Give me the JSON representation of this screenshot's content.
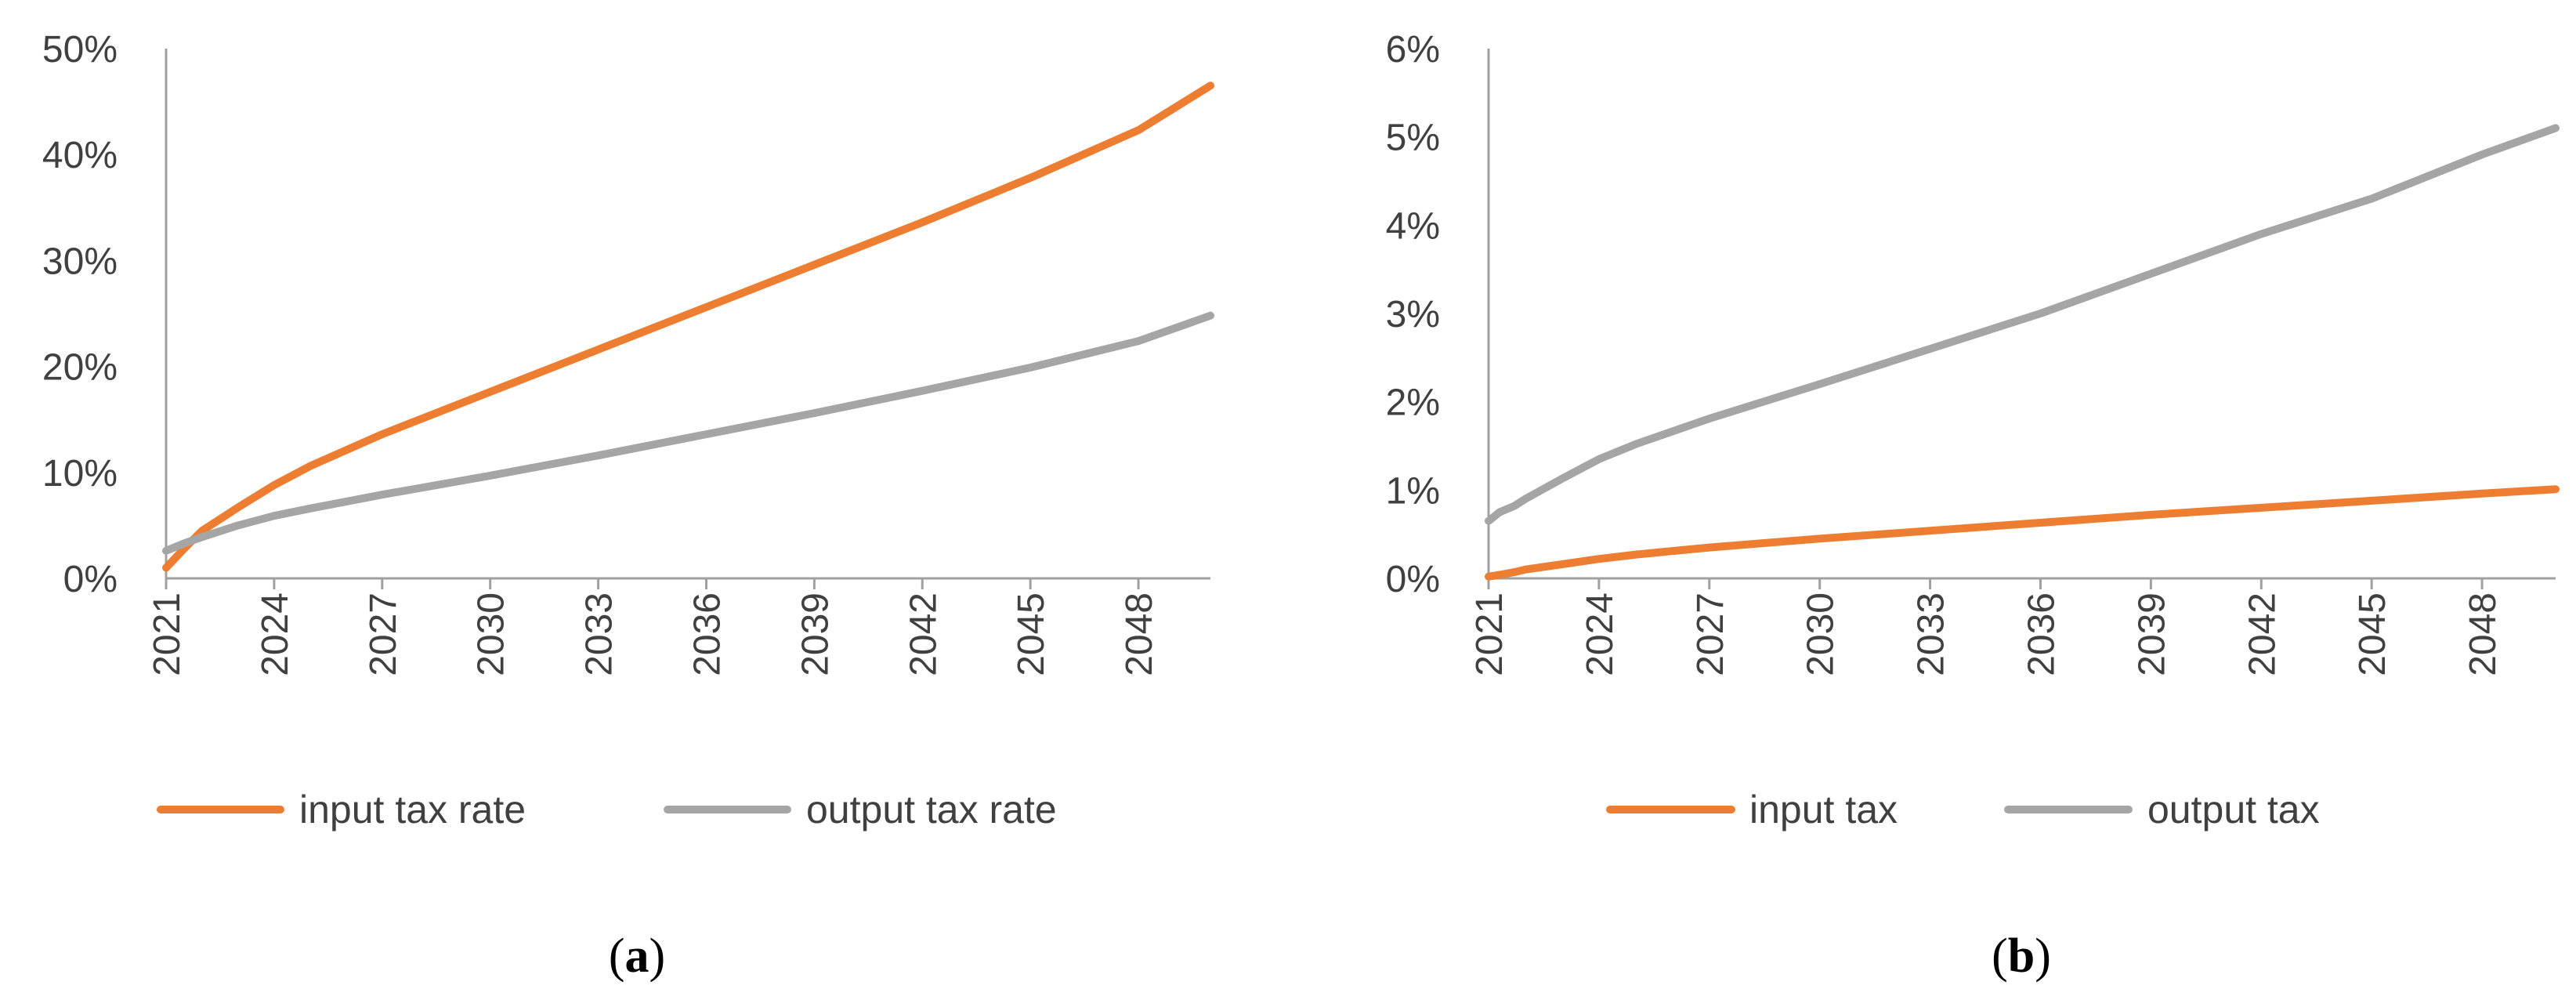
{
  "chart_data": [
    {
      "type": "line",
      "panel_label": "a",
      "caption_open": "(",
      "caption_close": ")",
      "title": "",
      "xlabel": "",
      "ylabel": "",
      "ylim": [
        0,
        50
      ],
      "yticks": [
        0,
        10,
        20,
        30,
        40,
        50
      ],
      "ytick_labels": [
        "0%",
        "10%",
        "20%",
        "30%",
        "40%",
        "50%"
      ],
      "xlim": [
        2021,
        2050
      ],
      "xticks": [
        2021,
        2024,
        2027,
        2030,
        2033,
        2036,
        2039,
        2042,
        2045,
        2048
      ],
      "xtick_labels": [
        "2021",
        "2024",
        "2027",
        "2030",
        "2033",
        "2036",
        "2039",
        "2042",
        "2045",
        "2048"
      ],
      "grid": false,
      "legend_position": "bottom",
      "x": [
        2021,
        2021.5,
        2022,
        2023,
        2024,
        2025,
        2027,
        2030,
        2033,
        2036,
        2039,
        2042,
        2045,
        2048,
        2050
      ],
      "series": [
        {
          "name": "input tax rate",
          "color": "#ED7D31",
          "values": [
            1.0,
            2.8,
            4.5,
            6.7,
            8.8,
            10.6,
            13.6,
            17.6,
            21.6,
            25.6,
            29.6,
            33.6,
            37.8,
            42.3,
            46.5
          ]
        },
        {
          "name": "output tax rate",
          "color": "#A5A5A5",
          "values": [
            2.6,
            3.3,
            3.9,
            5.0,
            5.9,
            6.6,
            7.9,
            9.7,
            11.6,
            13.6,
            15.6,
            17.7,
            19.9,
            22.4,
            24.8
          ]
        }
      ]
    },
    {
      "type": "line",
      "panel_label": "b",
      "caption_open": "(",
      "caption_close": ")",
      "title": "",
      "xlabel": "",
      "ylabel": "",
      "ylim": [
        0,
        6
      ],
      "yticks": [
        0,
        1,
        2,
        3,
        4,
        5,
        6
      ],
      "ytick_labels": [
        "0%",
        "1%",
        "2%",
        "3%",
        "4%",
        "5%",
        "6%"
      ],
      "xlim": [
        2021,
        2050
      ],
      "xticks": [
        2021,
        2024,
        2027,
        2030,
        2033,
        2036,
        2039,
        2042,
        2045,
        2048
      ],
      "xtick_labels": [
        "2021",
        "2024",
        "2027",
        "2030",
        "2033",
        "2036",
        "2039",
        "2042",
        "2045",
        "2048"
      ],
      "grid": false,
      "legend_position": "bottom",
      "x": [
        2021,
        2021.3,
        2021.7,
        2022,
        2023,
        2024,
        2025,
        2027,
        2030,
        2033,
        2036,
        2039,
        2042,
        2045,
        2048,
        2050
      ],
      "series": [
        {
          "name": "input tax",
          "color": "#ED7D31",
          "values": [
            0.02,
            0.04,
            0.07,
            0.1,
            0.16,
            0.22,
            0.27,
            0.35,
            0.45,
            0.54,
            0.63,
            0.72,
            0.8,
            0.88,
            0.96,
            1.01
          ]
        },
        {
          "name": "output tax",
          "color": "#A5A5A5",
          "values": [
            0.65,
            0.75,
            0.82,
            0.9,
            1.13,
            1.35,
            1.52,
            1.81,
            2.2,
            2.6,
            3.0,
            3.45,
            3.9,
            4.3,
            4.8,
            5.1
          ]
        }
      ]
    }
  ]
}
